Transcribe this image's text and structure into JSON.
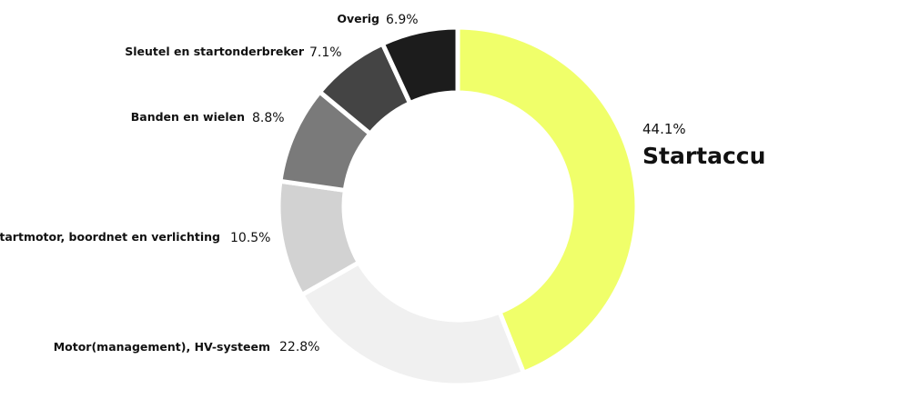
{
  "chart_data": {
    "type": "pie",
    "donut": true,
    "title": "",
    "categories": [
      "Startaccu",
      "Motor(management), HV-systeem",
      "Startmotor, boordnet en verlichting",
      "Banden en wielen",
      "Sleutel en startonderbreker",
      "Overig"
    ],
    "values": [
      44.1,
      22.8,
      10.5,
      8.8,
      7.1,
      6.9
    ],
    "value_labels": [
      "44.1%",
      "22.8%",
      "10.5%",
      "8.8%",
      "7.1%",
      "6.9%"
    ],
    "colors": [
      "#f0ff6a",
      "#f0f0f0",
      "#d2d2d2",
      "#7a7a7a",
      "#444444",
      "#1c1c1c"
    ],
    "legend": "none"
  }
}
